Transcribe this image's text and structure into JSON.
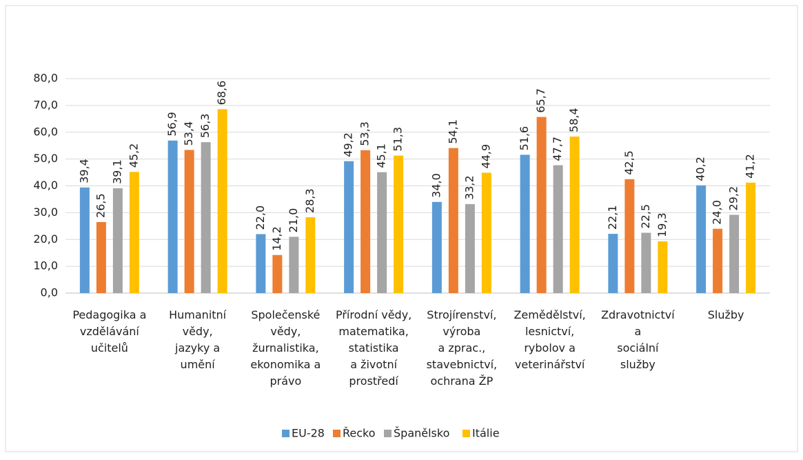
{
  "chart_data": {
    "type": "bar",
    "categories": [
      "Pedagogika a\nvzdělávání\nučitelů",
      "Humanitní\nvědy,\njazyky a\numění",
      "Společenské\nvědy,\nžurnalistika,\nekonomika a\nprávo",
      "Přírodní vědy,\nmatematika,\nstatistika\na životní\nprostředí",
      "Strojírenství,\nvýroba\na zprac.,\nstavebnictví,\nochrana ŽP",
      "Zemědělství,\nlesnictví,\nrybolov a\nveterinářství",
      "Zdravotnictví\na\nsociální\nslužby",
      "Služby"
    ],
    "series": [
      {
        "name": "EU-28",
        "color": "#5b9bd5",
        "values": [
          39.4,
          56.9,
          22.0,
          49.2,
          34.0,
          51.6,
          22.1,
          40.2
        ],
        "value_labels": [
          "39,4",
          "56,9",
          "22,0",
          "49,2",
          "34,0",
          "51,6",
          "22,1",
          "40,2"
        ]
      },
      {
        "name": "Řecko",
        "color": "#ed7d31",
        "values": [
          26.5,
          53.4,
          14.2,
          53.3,
          54.1,
          65.7,
          42.5,
          24.0
        ],
        "value_labels": [
          "26,5",
          "53,4",
          "14,2",
          "53,3",
          "54,1",
          "65,7",
          "42,5",
          "24,0"
        ]
      },
      {
        "name": "Španělsko",
        "color": "#a5a5a5",
        "values": [
          39.1,
          56.3,
          21.0,
          45.1,
          33.2,
          47.7,
          22.5,
          29.2
        ],
        "value_labels": [
          "39,1",
          "56,3",
          "21,0",
          "45,1",
          "33,2",
          "47,7",
          "22,5",
          "29,2"
        ]
      },
      {
        "name": "Itálie",
        "color": "#ffc000",
        "values": [
          45.2,
          68.6,
          28.3,
          51.3,
          44.9,
          58.4,
          19.3,
          41.2
        ],
        "value_labels": [
          "45,2",
          "68,6",
          "28,3",
          "51,3",
          "44,9",
          "58,4",
          "19,3",
          "41,2"
        ]
      }
    ],
    "ylim": [
      0,
      80
    ],
    "yticks": [
      {
        "value": 0,
        "label": "0,0"
      },
      {
        "value": 10,
        "label": "10,0"
      },
      {
        "value": 20,
        "label": "20,0"
      },
      {
        "value": 30,
        "label": "30,0"
      },
      {
        "value": 40,
        "label": "40,0"
      },
      {
        "value": 50,
        "label": "50,0"
      },
      {
        "value": 60,
        "label": "60,0"
      },
      {
        "value": 70,
        "label": "70,0"
      },
      {
        "value": 80,
        "label": "80,0"
      }
    ],
    "grid": true,
    "legend": "bottom"
  }
}
